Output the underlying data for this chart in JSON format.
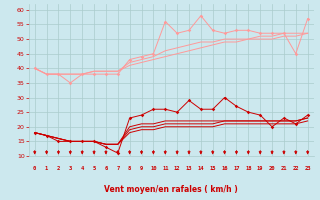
{
  "background_color": "#cce8ee",
  "grid_color": "#aacccc",
  "x_labels": [
    "0",
    "1",
    "2",
    "3",
    "4",
    "5",
    "6",
    "7",
    "8",
    "9",
    "10",
    "11",
    "12",
    "13",
    "14",
    "15",
    "16",
    "17",
    "18",
    "19",
    "20",
    "21",
    "22",
    "23"
  ],
  "xlabel": "Vent moyen/en rafales ( km/h )",
  "ylim": [
    10,
    62
  ],
  "yticks": [
    10,
    15,
    20,
    25,
    30,
    35,
    40,
    45,
    50,
    55,
    60
  ],
  "light_lines": [
    [
      40,
      38,
      38,
      35,
      38,
      38,
      38,
      38,
      43,
      44,
      45,
      56,
      52,
      53,
      58,
      53,
      52,
      53,
      53,
      52,
      52,
      52,
      45,
      57
    ],
    [
      40,
      38,
      38,
      38,
      38,
      39,
      39,
      39,
      42,
      43,
      44,
      46,
      47,
      48,
      49,
      49,
      50,
      50,
      50,
      51,
      51,
      52,
      52,
      52
    ],
    [
      40,
      38,
      38,
      38,
      38,
      39,
      39,
      39,
      41,
      42,
      43,
      44,
      45,
      46,
      47,
      48,
      49,
      49,
      50,
      50,
      50,
      51,
      51,
      52
    ]
  ],
  "dark_lines": [
    [
      18,
      17,
      15,
      15,
      15,
      15,
      13,
      11,
      23,
      24,
      26,
      26,
      25,
      29,
      26,
      26,
      30,
      27,
      25,
      24,
      20,
      23,
      21,
      24
    ],
    [
      18,
      17,
      16,
      15,
      15,
      15,
      14,
      14,
      20,
      21,
      21,
      22,
      22,
      22,
      22,
      22,
      22,
      22,
      22,
      22,
      22,
      22,
      22,
      23
    ],
    [
      18,
      17,
      16,
      15,
      15,
      15,
      14,
      14,
      19,
      20,
      20,
      21,
      21,
      21,
      21,
      21,
      22,
      22,
      22,
      22,
      22,
      22,
      22,
      23
    ],
    [
      18,
      17,
      16,
      15,
      15,
      15,
      14,
      14,
      18,
      19,
      19,
      20,
      20,
      20,
      20,
      20,
      21,
      21,
      21,
      21,
      21,
      21,
      21,
      22
    ]
  ],
  "light_color": "#ff9999",
  "dark_color": "#cc0000",
  "arrow_color": "#cc0000",
  "xlabel_color": "#cc0000",
  "tick_label_color": "#cc0000",
  "marker_light": "D",
  "marker_dark": "D"
}
